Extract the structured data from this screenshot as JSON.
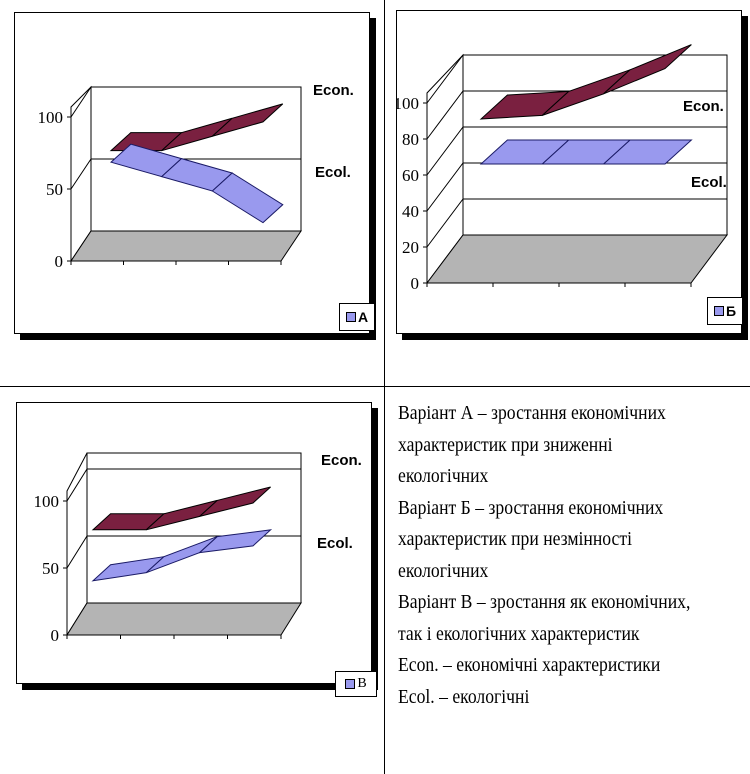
{
  "colors": {
    "econ_fill": "#7a2040",
    "econ_stroke": "#000000",
    "ecol_fill": "#9999ee",
    "ecol_stroke": "#1a1a66",
    "floor": "#b4b4b4"
  },
  "chart_data": [
    {
      "type": "3d-line",
      "legend": "A",
      "ylim": [
        0,
        100
      ],
      "yticks": [
        "0",
        "50",
        "100"
      ],
      "series": [
        {
          "name": "Econ.",
          "values": [
            78,
            78,
            88,
            98
          ]
        },
        {
          "name": "Ecol.",
          "values": [
            70,
            60,
            50,
            28
          ]
        }
      ]
    },
    {
      "type": "3d-line",
      "legend": "Б",
      "ylim": [
        0,
        100
      ],
      "yticks": [
        "0",
        "20",
        "40",
        "60",
        "80",
        "100"
      ],
      "series": [
        {
          "name": "Econ.",
          "values": [
            80,
            82,
            94,
            108
          ]
        },
        {
          "name": "Ecol.",
          "values": [
            55,
            55,
            55,
            55
          ]
        }
      ]
    },
    {
      "type": "3d-line",
      "legend": "В",
      "ylim": [
        0,
        100
      ],
      "yticks": [
        "0",
        "50",
        "100"
      ],
      "series": [
        {
          "name": "Econ.",
          "values": [
            80,
            80,
            90,
            100
          ]
        },
        {
          "name": "Ecol.",
          "values": [
            42,
            48,
            63,
            68
          ]
        }
      ]
    }
  ],
  "description": [
    "Варіант А – зростання економічних",
    "характеристик при зниженні",
    "екологічних",
    "Варіант Б – зростання економічних",
    "характеристик при незмінності",
    "екологічних",
    "Варіант В – зростання як економічних,",
    "так і екологічних характеристик",
    "Econ. – економічні характеристики",
    "Ecol. – екологічні"
  ]
}
